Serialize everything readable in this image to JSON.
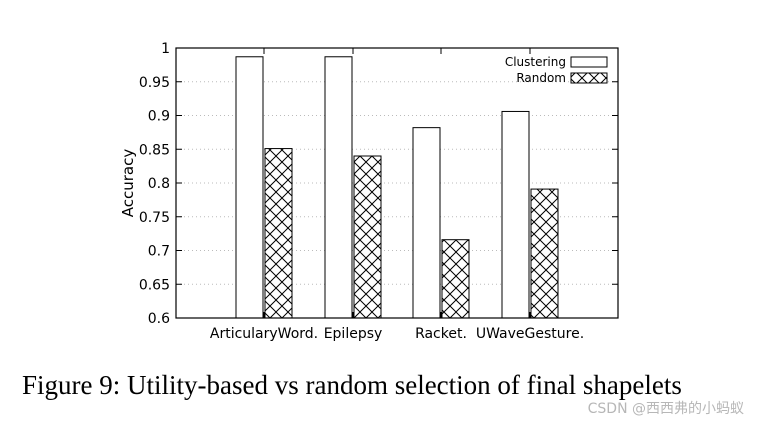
{
  "chart_data": {
    "type": "bar",
    "title": "",
    "xlabel": "",
    "ylabel": "Accuracy",
    "ylim": [
      0.6,
      1.0
    ],
    "yticks": [
      "0.6",
      "0.65",
      "0.7",
      "0.75",
      "0.8",
      "0.85",
      "0.9",
      "0.95",
      "1"
    ],
    "categories": [
      "ArticularyWord.",
      "Epilepsy",
      "Racket.",
      "UWaveGesture."
    ],
    "series": [
      {
        "name": "Clustering",
        "pattern": "open",
        "values": [
          0.987,
          0.987,
          0.882,
          0.906
        ]
      },
      {
        "name": "Random",
        "pattern": "crosshatch",
        "values": [
          0.851,
          0.84,
          0.716,
          0.791
        ]
      }
    ],
    "legend_position": "top-right",
    "grid": "horizontal-dotted"
  },
  "caption": "Figure 9: Utility-based vs random selection of final shapelets",
  "watermark": "CSDN @西西弗的小蚂蚁",
  "colors": {
    "bar_fill": "#ffffff",
    "bar_stroke": "#000000",
    "grid": "#bbbbbb"
  }
}
